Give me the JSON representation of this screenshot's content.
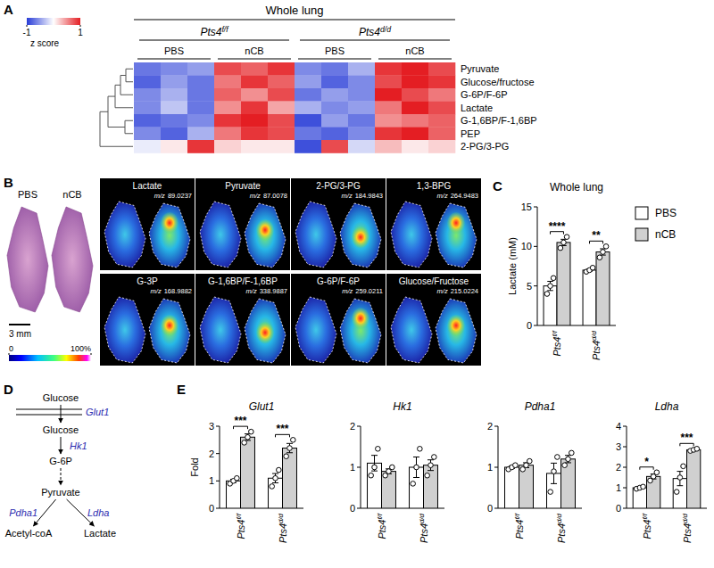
{
  "panel_labels": [
    "A",
    "B",
    "C",
    "D",
    "E"
  ],
  "chart_data": [
    {
      "type": "heatmap",
      "title": "Whole lung",
      "column_groups": [
        {
          "genotype": {
            "gene": "Pts4",
            "allele": "f/f"
          },
          "treatments": [
            "PBS",
            "nCB"
          ]
        },
        {
          "genotype": {
            "gene": "Pts4",
            "allele": "d/d"
          },
          "treatments": [
            "PBS",
            "nCB"
          ]
        }
      ],
      "rows": [
        "Pyruvate",
        "Glucose/fructose",
        "G-6P/F-6P",
        "Lactate",
        "G-1,6BP/F-1,6BP",
        "PEP",
        "2-PG/3-PG"
      ],
      "values": [
        [
          -0.7,
          -0.6,
          -0.5,
          0.8,
          0.7,
          0.9,
          -0.6,
          -0.7,
          -0.4,
          0.9,
          1.0,
          0.8
        ],
        [
          -0.8,
          -0.5,
          -0.7,
          0.6,
          0.9,
          0.7,
          -0.5,
          -0.8,
          -0.6,
          0.8,
          1.0,
          0.9
        ],
        [
          -0.6,
          -0.4,
          -0.7,
          0.7,
          0.5,
          0.8,
          -0.7,
          -0.5,
          -0.6,
          1.0,
          0.8,
          0.6
        ],
        [
          -0.6,
          -0.3,
          -0.7,
          0.5,
          0.9,
          0.4,
          -0.4,
          -0.6,
          -0.5,
          0.6,
          1.0,
          0.8
        ],
        [
          -0.8,
          -0.7,
          -0.6,
          0.9,
          1.0,
          0.8,
          -0.9,
          -0.5,
          -0.7,
          0.5,
          0.6,
          0.7
        ],
        [
          -0.6,
          -0.8,
          -0.4,
          0.6,
          0.9,
          0.8,
          -0.7,
          -0.8,
          -0.6,
          0.9,
          1.0,
          0.7
        ],
        [
          -0.1,
          0.1,
          0.9,
          0.2,
          0.1,
          0.1,
          -0.9,
          0.8,
          -0.2,
          0.3,
          0.1,
          0.2
        ]
      ],
      "colorbar": {
        "range": [
          -1,
          1
        ],
        "ticks": [
          -1,
          1
        ],
        "label": "z score"
      }
    },
    {
      "type": "bar",
      "title": "Whole lung",
      "y_label": "Lactate (mM)",
      "categories": [
        {
          "gene": "Pts4",
          "allele": "f/f"
        },
        {
          "gene": "Pts4",
          "allele": "d/d"
        }
      ],
      "series": [
        {
          "name": "PBS",
          "color": "#ffffff",
          "values": [
            5.0,
            7.0
          ],
          "errors": [
            0.58,
            0.15
          ],
          "points": [
            [
              4.0,
              5.0,
              6.0
            ],
            [
              6.8,
              7.0,
              7.3
            ]
          ]
        },
        {
          "name": "nCB",
          "color": "#d0d0d0",
          "values": [
            10.5,
            9.3
          ],
          "errors": [
            0.4,
            0.4
          ],
          "points": [
            [
              9.8,
              10.5,
              11.2
            ],
            [
              8.6,
              9.3,
              10.0
            ]
          ]
        }
      ],
      "significance": [
        "****",
        "**"
      ],
      "ylim": [
        0,
        15
      ],
      "yticks": [
        0,
        5,
        10,
        15
      ],
      "legend": "right"
    },
    {
      "type": "bar",
      "title": "Glut1",
      "y_label": "Fold",
      "categories": [
        {
          "gene": "Pts4",
          "allele": "f/f"
        },
        {
          "gene": "Pts4",
          "allele": "d/d"
        }
      ],
      "series": [
        {
          "name": "PBS",
          "color": "#ffffff",
          "values": [
            1.0,
            1.1
          ],
          "errors": [
            0.06,
            0.17
          ],
          "points": [
            [
              0.9,
              1.0,
              1.1
            ],
            [
              0.8,
              1.1,
              1.4
            ]
          ]
        },
        {
          "name": "nCB",
          "color": "#d0d0d0",
          "values": [
            2.6,
            2.2
          ],
          "errors": [
            0.12,
            0.17
          ],
          "points": [
            [
              2.4,
              2.6,
              2.8
            ],
            [
              1.9,
              2.2,
              2.5
            ]
          ]
        }
      ],
      "significance": [
        "***",
        "***"
      ],
      "ylim": [
        0,
        3
      ],
      "yticks": [
        0,
        1,
        2,
        3
      ]
    },
    {
      "type": "bar",
      "title": "Hk1",
      "categories": [
        {
          "gene": "Pts4",
          "allele": "f/f"
        },
        {
          "gene": "Pts4",
          "allele": "d/d"
        }
      ],
      "series": [
        {
          "name": "PBS",
          "color": "#ffffff",
          "values": [
            1.1,
            1.0
          ],
          "errors": [
            0.19,
            0.25
          ],
          "points": [
            [
              0.8,
              1.0,
              1.45
            ],
            [
              0.6,
              1.0,
              1.45
            ]
          ]
        },
        {
          "name": "nCB",
          "color": "#d0d0d0",
          "values": [
            0.9,
            1.05
          ],
          "errors": [
            0.06,
            0.13
          ],
          "points": [
            [
              0.8,
              0.9,
              1.0
            ],
            [
              0.8,
              1.05,
              1.25
            ]
          ]
        }
      ],
      "ylim": [
        0,
        2
      ],
      "yticks": [
        0,
        1,
        2
      ]
    },
    {
      "type": "bar",
      "title": "Pdha1",
      "categories": [
        {
          "gene": "Pts4",
          "allele": "f/f"
        },
        {
          "gene": "Pts4",
          "allele": "d/d"
        }
      ],
      "series": [
        {
          "name": "PBS",
          "color": "#ffffff",
          "values": [
            1.0,
            0.85
          ],
          "errors": [
            0.03,
            0.25
          ],
          "points": [
            [
              0.95,
              1.0,
              1.05
            ],
            [
              0.4,
              0.9,
              1.25
            ]
          ]
        },
        {
          "name": "nCB",
          "color": "#d0d0d0",
          "values": [
            1.05,
            1.2
          ],
          "errors": [
            0.06,
            0.09
          ],
          "points": [
            [
              0.95,
              1.05,
              1.15
            ],
            [
              1.05,
              1.2,
              1.35
            ]
          ]
        }
      ],
      "ylim": [
        0,
        2
      ],
      "yticks": [
        0,
        1,
        2
      ]
    },
    {
      "type": "bar",
      "title": "Ldha",
      "categories": [
        {
          "gene": "Pts4",
          "allele": "f/f"
        },
        {
          "gene": "Pts4",
          "allele": "d/d"
        }
      ],
      "series": [
        {
          "name": "PBS",
          "color": "#ffffff",
          "values": [
            1.0,
            1.45
          ],
          "errors": [
            0.03,
            0.35
          ],
          "points": [
            [
              0.95,
              1.0,
              1.05
            ],
            [
              0.8,
              1.5,
              2.05
            ]
          ]
        },
        {
          "name": "nCB",
          "color": "#d0d0d0",
          "values": [
            1.55,
            2.85
          ],
          "errors": [
            0.12,
            0.03
          ],
          "points": [
            [
              1.35,
              1.55,
              1.75
            ],
            [
              2.8,
              2.85,
              2.9
            ]
          ]
        }
      ],
      "significance": [
        "*",
        "***"
      ],
      "ylim": [
        0,
        4
      ],
      "yticks": [
        0,
        1,
        2,
        3,
        4
      ]
    }
  ],
  "imaging": {
    "conditions": [
      "PBS",
      "nCB"
    ],
    "mz_label": "m/z",
    "ions": [
      {
        "name": "Lactate",
        "mz": 89.0237
      },
      {
        "name": "Pyruvate",
        "mz": 87.0078
      },
      {
        "name": "2-PG/3-PG",
        "mz": 184.9843
      },
      {
        "name": "1,3-BPG",
        "mz": 264.9483
      },
      {
        "name": "G-3P",
        "mz": 168.9882
      },
      {
        "name": "G-1,6BP/F-1,6BP",
        "mz": 338.9887
      },
      {
        "name": "G-6P/F-6P",
        "mz": 259.0211
      },
      {
        "name": "Glucose/Fructose",
        "mz": 215.0224
      }
    ],
    "scale_bar": "3 mm",
    "colorbar": {
      "range": [
        0,
        100
      ],
      "ticks": [
        0,
        {
          "value": 100,
          "label": "100%"
        }
      ]
    }
  },
  "diagram": {
    "nodes": [
      "Glucose",
      "Glucose",
      "G-6P",
      "Pyruvate",
      "Acetyl-coA",
      "Lactate"
    ],
    "edges": [
      {
        "from": 0,
        "to": 1,
        "label": "Glut1"
      },
      {
        "from": 1,
        "to": 2,
        "label": "Hk1"
      },
      {
        "from": 2,
        "to": 3,
        "style": "dashed"
      },
      {
        "from": 3,
        "to": 4,
        "label": "Pdha1"
      },
      {
        "from": 3,
        "to": 5,
        "label": "Ldha"
      }
    ]
  }
}
